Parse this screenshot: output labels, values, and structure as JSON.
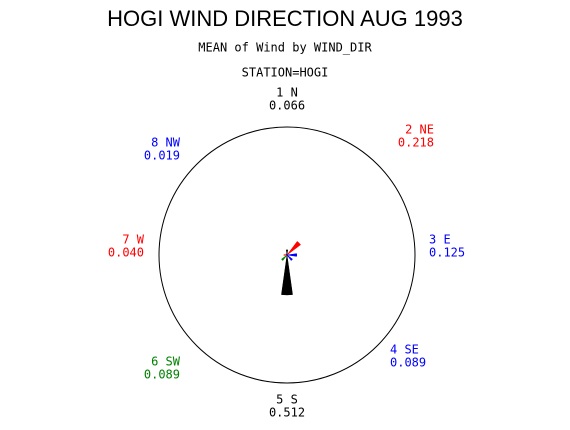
{
  "chart_data": {
    "type": "wind-rose",
    "title": "HOGI WIND DIRECTION AUG 1993",
    "subtitle": "MEAN of Wind by WIND_DIR",
    "station": "STATION=HOGI",
    "categories": [
      "1 N",
      "2 NE",
      "3 E",
      "4 SE",
      "5 S",
      "6 SW",
      "7 W",
      "8 NW"
    ],
    "values": [
      0.066,
      0.218,
      0.125,
      0.089,
      0.512,
      0.089,
      0.04,
      0.019
    ],
    "value_labels": [
      "0.066",
      "0.218",
      "0.125",
      "0.089",
      "0.512",
      "0.089",
      "0.040",
      "0.019"
    ],
    "colors": [
      "#000000",
      "#ff0000",
      "#0000ff",
      "#0000ff",
      "#000000",
      "#008000",
      "#ff0000",
      "#0000ff"
    ],
    "rlim": [
      0,
      1.64
    ]
  }
}
